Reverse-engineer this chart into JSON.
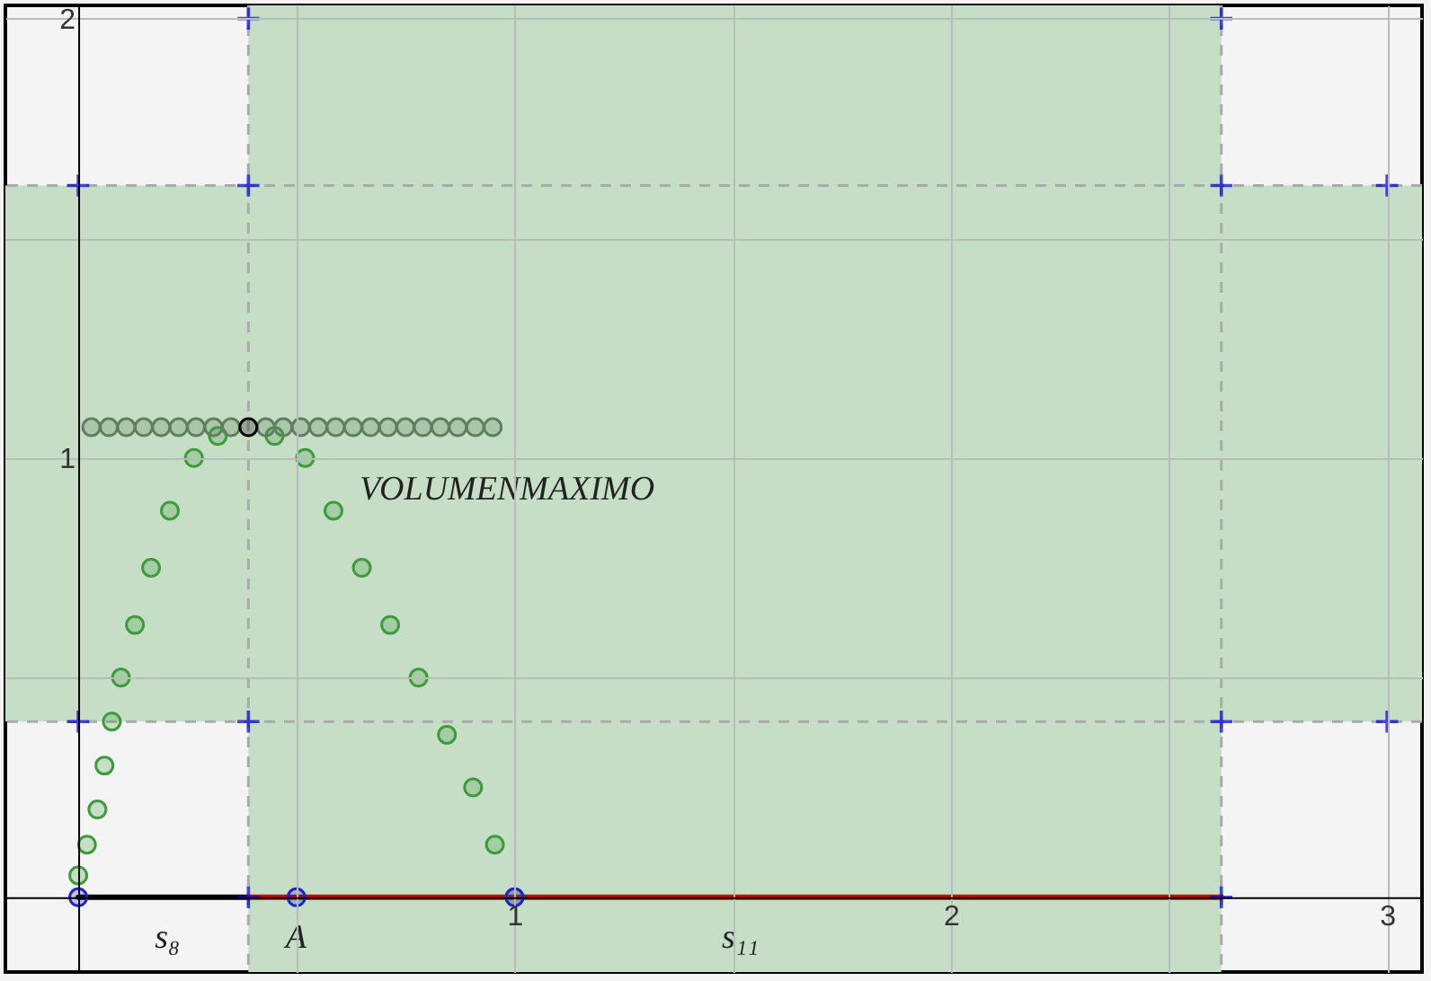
{
  "chart_data": {
    "type": "scatter",
    "xlim": [
      -0.167,
      3.08
    ],
    "ylim": [
      -0.17,
      2.03
    ],
    "xticks": [
      {
        "value": 0.5,
        "label": null
      },
      1,
      {
        "value": 1.5,
        "label": null
      },
      2,
      {
        "value": 2.5,
        "label": null
      },
      3
    ],
    "yticks": [
      {
        "value": 0.5,
        "label": null
      },
      1,
      {
        "value": 1.5,
        "label": null
      },
      2
    ],
    "grid": true,
    "bands": [
      {
        "axis": "x",
        "from": 0.39,
        "to": 2.62,
        "color": "#c6dec6"
      },
      {
        "axis": "y",
        "from": 0.4,
        "to": 1.62,
        "color": "#c6dec6"
      }
    ],
    "ref_lines": [
      {
        "axis": "x",
        "value": 0.39,
        "color": "#aaaaaa",
        "line_style": "dashed"
      },
      {
        "axis": "x",
        "value": 2.62,
        "color": "#aaaaaa",
        "line_style": "dashed"
      },
      {
        "axis": "y",
        "value": 0.4,
        "color": "#aaaaaa",
        "line_style": "dashed"
      },
      {
        "axis": "y",
        "value": 1.62,
        "color": "#aaaaaa",
        "line_style": "dashed"
      }
    ],
    "series": [
      {
        "type": "line",
        "color": "#000000",
        "x": [
          0,
          0.39
        ],
        "values": [
          0,
          0
        ]
      },
      {
        "type": "line",
        "color": "#cc0000",
        "x": [
          0.39,
          2.62
        ],
        "values": [
          0,
          0
        ]
      },
      {
        "marker": "circle",
        "color": "#3d9b3d",
        "x": [
          0,
          0.02,
          0.044,
          0.06,
          0.077,
          0.098,
          0.13,
          0.167,
          0.21,
          0.265,
          0.32,
          0.39,
          0.45,
          0.52,
          0.585,
          0.65,
          0.715,
          0.78,
          0.845,
          0.905,
          0.955,
          1.0
        ],
        "values": [
          0.05,
          0.12,
          0.2,
          0.3,
          0.4,
          0.5,
          0.62,
          0.75,
          0.88,
          1.0,
          1.05,
          null,
          1.05,
          1.0,
          0.88,
          0.75,
          0.62,
          0.5,
          0.37,
          0.25,
          0.12,
          0.0
        ]
      },
      {
        "marker": "circle",
        "color": "#5f7f5f",
        "x": [
          0.03,
          0.07,
          0.11,
          0.15,
          0.19,
          0.23,
          0.27,
          0.31,
          0.35,
          0.43,
          0.47,
          0.51,
          0.55,
          0.59,
          0.63,
          0.67,
          0.71,
          0.75,
          0.79,
          0.83,
          0.87,
          0.91,
          0.95
        ],
        "values": [
          1.07,
          1.07,
          1.07,
          1.07,
          1.07,
          1.07,
          1.07,
          1.07,
          1.07,
          1.07,
          1.07,
          1.07,
          1.07,
          1.07,
          1.07,
          1.07,
          1.07,
          1.07,
          1.07,
          1.07,
          1.07,
          1.07,
          1.07
        ]
      },
      {
        "marker": "circle",
        "color": "#000000",
        "x": [
          0.39
        ],
        "values": [
          1.07
        ]
      },
      {
        "marker": "circle",
        "color": "#2222cc",
        "x": [
          0,
          0.5,
          1
        ],
        "values": [
          0,
          0,
          0
        ]
      },
      {
        "marker": "cross",
        "color": "#0000cc",
        "x": [
          0,
          0.39,
          0.39,
          2.62,
          2.62,
          3,
          0,
          0.39,
          2.62,
          3,
          0.39,
          2.62
        ],
        "values": [
          1.62,
          1.62,
          2.0,
          2.0,
          1.62,
          1.62,
          0.4,
          0.4,
          0.4,
          0.4,
          0,
          0
        ]
      }
    ],
    "annotations": [
      "VOLUMENMAXIMO",
      {
        "text": "A",
        "x": 0.5,
        "y": 0
      },
      {
        "text": "s₈",
        "x": 0.2,
        "y": 0
      },
      {
        "text": "s₁₁",
        "x": 1.5,
        "y": 0
      }
    ]
  }
}
